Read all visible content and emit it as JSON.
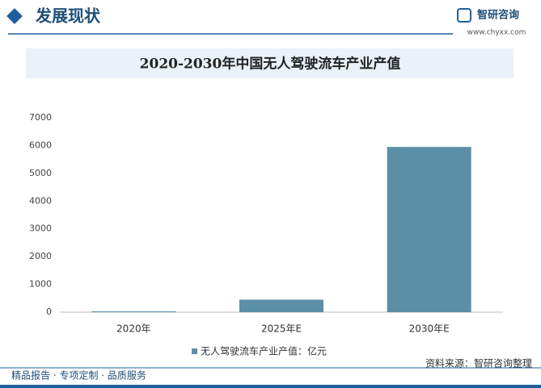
{
  "header": {
    "title": "发展现状",
    "logo": "智研咨询",
    "url": "www.chyxx.com"
  },
  "chart_data": {
    "type": "bar",
    "title": "2020-2030年中国无人驾驶流车产业产值",
    "categories": [
      "2020年",
      "2025年E",
      "2030年E"
    ],
    "series": [
      {
        "name": "无人驾驶流车产业产值：亿元",
        "color": "#5b8fa8",
        "values": [
          30,
          450,
          5950
        ]
      }
    ],
    "ylim": [
      0,
      7000
    ],
    "yticks": [
      0,
      1000,
      2000,
      3000,
      4000,
      5000,
      6000,
      7000
    ]
  },
  "source": "资料来源：智研咨询整理",
  "footer": "精品报告 · 专项定制 · 品质服务"
}
